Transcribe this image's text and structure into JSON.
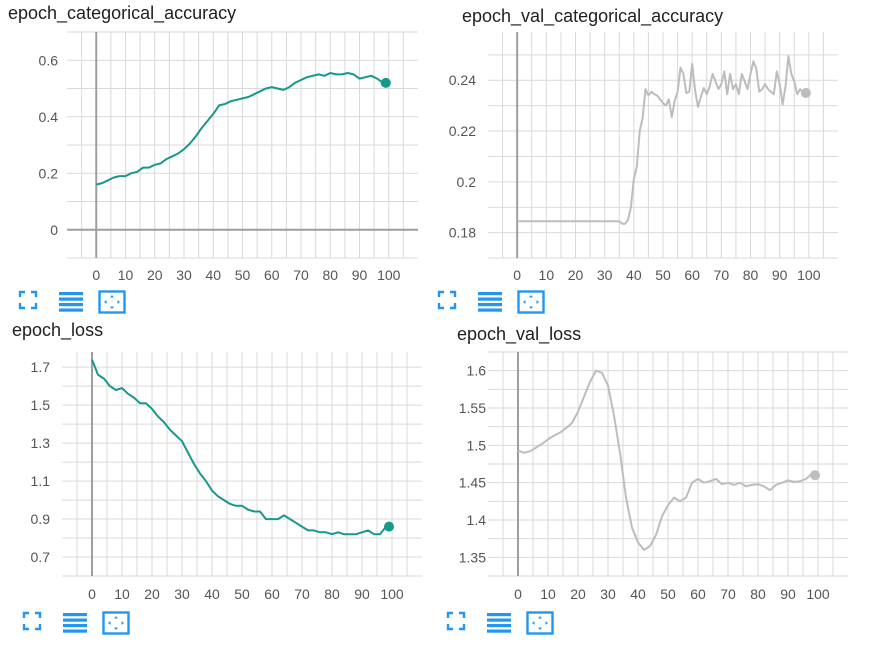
{
  "colors": {
    "train": "#16998a",
    "val": "#bdbdbd",
    "grid": "#d9d9d9",
    "axis": "#9e9e9e",
    "icon": "#2196f3"
  },
  "toolbar": {
    "icons": [
      "fullscreen-icon",
      "list-icon",
      "fit-domain-icon"
    ]
  },
  "chart_data": [
    {
      "type": "line",
      "title": "epoch_categorical_accuracy",
      "x_ticks": [
        0,
        10,
        20,
        30,
        40,
        50,
        60,
        70,
        80,
        90,
        100
      ],
      "y_ticks": [
        "0",
        "0.2",
        "0.4",
        "0.6"
      ],
      "xlim": [
        -10,
        110
      ],
      "ylim": [
        -0.1,
        0.7
      ],
      "grid": true,
      "series": [
        {
          "color": "#16998a",
          "x": [
            0,
            2,
            4,
            6,
            8,
            10,
            12,
            14,
            16,
            18,
            20,
            22,
            24,
            26,
            28,
            30,
            32,
            34,
            36,
            38,
            40,
            42,
            44,
            46,
            48,
            50,
            52,
            54,
            56,
            58,
            60,
            62,
            64,
            66,
            68,
            70,
            72,
            74,
            76,
            78,
            80,
            82,
            84,
            86,
            88,
            90,
            92,
            94,
            96,
            98,
            99
          ],
          "y": [
            0.16,
            0.165,
            0.175,
            0.185,
            0.19,
            0.19,
            0.2,
            0.205,
            0.22,
            0.22,
            0.23,
            0.235,
            0.25,
            0.26,
            0.27,
            0.285,
            0.305,
            0.33,
            0.36,
            0.385,
            0.41,
            0.44,
            0.445,
            0.455,
            0.46,
            0.465,
            0.47,
            0.48,
            0.49,
            0.5,
            0.505,
            0.5,
            0.495,
            0.505,
            0.52,
            0.53,
            0.54,
            0.545,
            0.55,
            0.545,
            0.555,
            0.55,
            0.55,
            0.555,
            0.55,
            0.535,
            0.54,
            0.545,
            0.535,
            0.52,
            0.52
          ]
        }
      ]
    },
    {
      "type": "line",
      "title": "epoch_val_categorical_accuracy",
      "x_ticks": [
        0,
        10,
        20,
        30,
        40,
        50,
        60,
        70,
        80,
        90,
        100
      ],
      "y_ticks": [
        "0.18",
        "0.2",
        "0.22",
        "0.24"
      ],
      "xlim": [
        -10,
        110
      ],
      "ylim": [
        0.17,
        0.259
      ],
      "grid": true,
      "series": [
        {
          "color": "#bdbdbd",
          "x": [
            0,
            5,
            10,
            15,
            20,
            25,
            30,
            35,
            36,
            37,
            38,
            39,
            40,
            41,
            42,
            43,
            44,
            45,
            46,
            47,
            48,
            49,
            50,
            51,
            52,
            53,
            54,
            55,
            56,
            57,
            58,
            59,
            60,
            61,
            62,
            63,
            64,
            65,
            66,
            67,
            68,
            69,
            70,
            71,
            72,
            73,
            74,
            75,
            76,
            77,
            78,
            79,
            80,
            81,
            82,
            83,
            84,
            85,
            86,
            87,
            88,
            89,
            90,
            91,
            92,
            93,
            94,
            95,
            96,
            97,
            98,
            99
          ],
          "y": [
            0.1845,
            0.1845,
            0.1845,
            0.1845,
            0.1845,
            0.1845,
            0.1845,
            0.1845,
            0.1835,
            0.1835,
            0.185,
            0.19,
            0.201,
            0.206,
            0.22,
            0.225,
            0.2365,
            0.234,
            0.2355,
            0.2345,
            0.234,
            0.2325,
            0.231,
            0.23,
            0.2325,
            0.2255,
            0.232,
            0.2355,
            0.245,
            0.2425,
            0.235,
            0.2355,
            0.2465,
            0.236,
            0.2295,
            0.2335,
            0.237,
            0.2345,
            0.2375,
            0.2425,
            0.2395,
            0.2365,
            0.2385,
            0.2435,
            0.2345,
            0.2425,
            0.2365,
            0.2385,
            0.2345,
            0.2425,
            0.2395,
            0.2365,
            0.2425,
            0.2475,
            0.2445,
            0.2355,
            0.2365,
            0.2385,
            0.2365,
            0.2355,
            0.2345,
            0.2435,
            0.2385,
            0.2305,
            0.2375,
            0.2495,
            0.2425,
            0.2395,
            0.2345,
            0.2365,
            0.235,
            0.235
          ]
        }
      ]
    },
    {
      "type": "line",
      "title": "epoch_loss",
      "x_ticks": [
        0,
        10,
        20,
        30,
        40,
        50,
        60,
        70,
        80,
        90,
        100
      ],
      "y_ticks": [
        "0.7",
        "0.9",
        "1.1",
        "1.3",
        "1.5",
        "1.7"
      ],
      "xlim": [
        -10,
        110
      ],
      "ylim": [
        0.6,
        1.78
      ],
      "grid": true,
      "series": [
        {
          "color": "#16998a",
          "x": [
            0,
            2,
            4,
            6,
            8,
            10,
            12,
            14,
            16,
            18,
            20,
            22,
            24,
            26,
            28,
            30,
            32,
            34,
            36,
            38,
            40,
            42,
            44,
            46,
            48,
            50,
            52,
            54,
            56,
            58,
            60,
            62,
            64,
            66,
            68,
            70,
            72,
            74,
            76,
            78,
            80,
            82,
            84,
            86,
            88,
            90,
            92,
            94,
            96,
            98,
            99
          ],
          "y": [
            1.74,
            1.66,
            1.64,
            1.6,
            1.58,
            1.59,
            1.56,
            1.54,
            1.51,
            1.51,
            1.48,
            1.44,
            1.41,
            1.37,
            1.34,
            1.31,
            1.25,
            1.19,
            1.14,
            1.1,
            1.05,
            1.02,
            1.0,
            0.98,
            0.97,
            0.97,
            0.95,
            0.94,
            0.94,
            0.9,
            0.9,
            0.9,
            0.92,
            0.9,
            0.88,
            0.86,
            0.84,
            0.84,
            0.83,
            0.83,
            0.82,
            0.83,
            0.82,
            0.82,
            0.82,
            0.83,
            0.84,
            0.82,
            0.82,
            0.86,
            0.86
          ]
        }
      ]
    },
    {
      "type": "line",
      "title": "epoch_val_loss",
      "x_ticks": [
        0,
        10,
        20,
        30,
        40,
        50,
        60,
        70,
        80,
        90,
        100
      ],
      "y_ticks": [
        "1.35",
        "1.4",
        "1.45",
        "1.5",
        "1.55",
        "1.6"
      ],
      "xlim": [
        -10,
        110
      ],
      "ylim": [
        1.325,
        1.625
      ],
      "grid": true,
      "series": [
        {
          "color": "#bdbdbd",
          "x": [
            0,
            2,
            4,
            6,
            8,
            10,
            12,
            14,
            16,
            18,
            20,
            22,
            24,
            26,
            28,
            30,
            32,
            34,
            36,
            38,
            40,
            42,
            44,
            46,
            48,
            50,
            52,
            54,
            56,
            58,
            60,
            62,
            64,
            66,
            68,
            70,
            72,
            74,
            76,
            78,
            80,
            82,
            84,
            86,
            88,
            90,
            92,
            94,
            96,
            98,
            99
          ],
          "y": [
            1.493,
            1.49,
            1.492,
            1.497,
            1.502,
            1.508,
            1.513,
            1.517,
            1.523,
            1.53,
            1.545,
            1.565,
            1.585,
            1.6,
            1.597,
            1.58,
            1.54,
            1.49,
            1.43,
            1.39,
            1.37,
            1.36,
            1.365,
            1.38,
            1.405,
            1.42,
            1.43,
            1.425,
            1.43,
            1.45,
            1.455,
            1.45,
            1.452,
            1.455,
            1.448,
            1.45,
            1.447,
            1.45,
            1.445,
            1.447,
            1.448,
            1.445,
            1.44,
            1.447,
            1.45,
            1.453,
            1.451,
            1.452,
            1.455,
            1.462,
            1.46
          ]
        }
      ]
    }
  ]
}
